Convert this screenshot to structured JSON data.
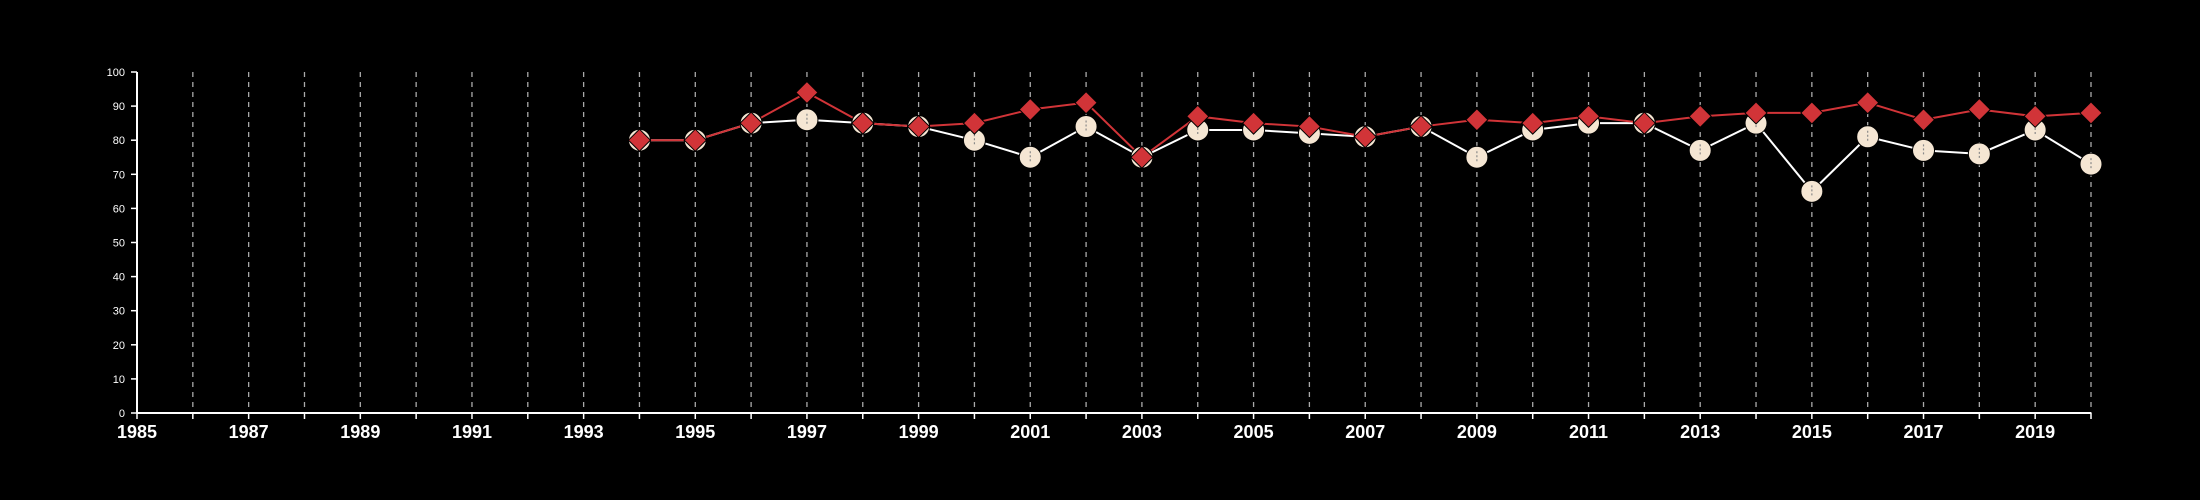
{
  "chart_data": {
    "type": "line",
    "background": "#000000",
    "grid": {
      "vertical": true,
      "horizontal": false,
      "style": "dashed",
      "color": "#aaaaaa"
    },
    "legend": "none",
    "xlim": [
      1985,
      2020
    ],
    "ylim": [
      0,
      100
    ],
    "x_ticks": [
      1985,
      1987,
      1989,
      1991,
      1993,
      1995,
      1997,
      1999,
      2001,
      2003,
      2005,
      2007,
      2009,
      2011,
      2013,
      2015,
      2017,
      2019
    ],
    "x_tick_labels": [
      "1985",
      "1987",
      "1989",
      "1991",
      "1993",
      "1995",
      "1997",
      "1999",
      "2001",
      "2003",
      "2005",
      "2007",
      "2009",
      "2011",
      "2013",
      "2015",
      "2017",
      "2019"
    ],
    "y_ticks": [
      0,
      10,
      20,
      30,
      40,
      50,
      60,
      70,
      80,
      90,
      100
    ],
    "y_tick_labels": [
      "0",
      "10",
      "20",
      "30",
      "40",
      "50",
      "60",
      "70",
      "80",
      "90",
      "100"
    ],
    "x": [
      1994,
      1995,
      1996,
      1997,
      1998,
      1999,
      2000,
      2001,
      2002,
      2003,
      2004,
      2005,
      2006,
      2007,
      2008,
      2009,
      2010,
      2011,
      2012,
      2013,
      2014,
      2015,
      2016,
      2017,
      2018,
      2019,
      2020
    ],
    "series": [
      {
        "color": "#ffffff",
        "marker": "circle",
        "marker_fill": "#f5e6d3",
        "values": [
          80,
          80,
          85,
          86,
          85,
          84,
          80,
          75,
          84,
          75,
          83,
          83,
          82,
          81,
          84,
          75,
          83,
          85,
          85,
          77,
          85,
          65,
          81,
          77,
          76,
          83,
          73
        ]
      },
      {
        "color": "#d13438",
        "marker": "diamond",
        "marker_fill": "#d13438",
        "values": [
          80,
          80,
          85,
          94,
          85,
          84,
          85,
          89,
          91,
          75,
          87,
          85,
          84,
          81,
          84,
          86,
          85,
          87,
          85,
          87,
          88,
          88,
          91,
          86,
          89,
          87,
          88
        ]
      }
    ]
  }
}
